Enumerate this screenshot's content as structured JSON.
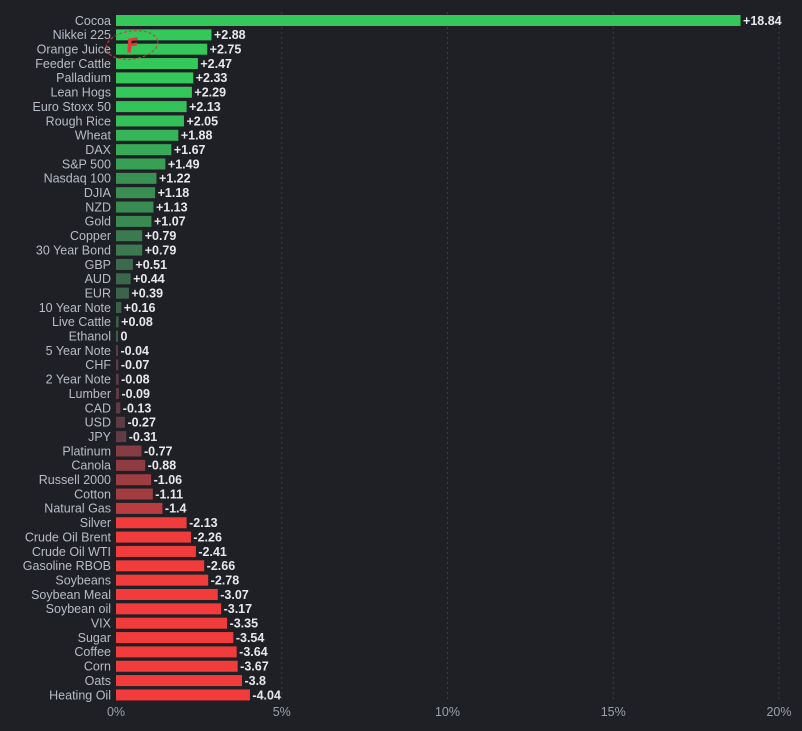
{
  "chart_data": {
    "type": "bar",
    "orientation": "horizontal",
    "title": "",
    "xlabel": "",
    "ylabel": "",
    "xlim": [
      0,
      20
    ],
    "x_ticks": [
      "0%",
      "5%",
      "10%",
      "15%",
      "20%"
    ],
    "grid": true,
    "categories": [
      "Cocoa",
      "Nikkei 225",
      "Orange Juice",
      "Feeder Cattle",
      "Palladium",
      "Lean Hogs",
      "Euro Stoxx 50",
      "Rough Rice",
      "Wheat",
      "DAX",
      "S&P 500",
      "Nasdaq 100",
      "DJIA",
      "NZD",
      "Gold",
      "Copper",
      "30 Year Bond",
      "GBP",
      "AUD",
      "EUR",
      "10 Year Note",
      "Live Cattle",
      "Ethanol",
      "5 Year Note",
      "CHF",
      "2 Year Note",
      "Lumber",
      "CAD",
      "USD",
      "JPY",
      "Platinum",
      "Canola",
      "Russell 2000",
      "Cotton",
      "Natural Gas",
      "Silver",
      "Crude Oil Brent",
      "Crude Oil WTI",
      "Gasoline RBOB",
      "Soybeans",
      "Soybean Meal",
      "Soybean oil",
      "VIX",
      "Sugar",
      "Coffee",
      "Corn",
      "Oats",
      "Heating Oil"
    ],
    "values": [
      18.84,
      2.88,
      2.75,
      2.47,
      2.33,
      2.29,
      2.13,
      2.05,
      1.88,
      1.67,
      1.49,
      1.22,
      1.18,
      1.13,
      1.07,
      0.79,
      0.79,
      0.51,
      0.44,
      0.39,
      0.16,
      0.08,
      0,
      -0.04,
      -0.07,
      -0.08,
      -0.09,
      -0.13,
      -0.27,
      -0.31,
      -0.77,
      -0.88,
      -1.06,
      -1.11,
      -1.4,
      -2.13,
      -2.26,
      -2.41,
      -2.66,
      -2.78,
      -3.07,
      -3.17,
      -3.35,
      -3.54,
      -3.64,
      -3.67,
      -3.8,
      -4.04
    ],
    "value_labels": [
      "+18.84",
      "+2.88",
      "+2.75",
      "+2.47",
      "+2.33",
      "+2.29",
      "+2.13",
      "+2.05",
      "+1.88",
      "+1.67",
      "+1.49",
      "+1.22",
      "+1.18",
      "+1.13",
      "+1.07",
      "+0.79",
      "+0.79",
      "+0.51",
      "+0.44",
      "+0.39",
      "+0.16",
      "+0.08",
      "0",
      "-0.04",
      "-0.07",
      "-0.08",
      "-0.09",
      "-0.13",
      "-0.27",
      "-0.31",
      "-0.77",
      "-0.88",
      "-1.06",
      "-1.11",
      "-1.4",
      "-2.13",
      "-2.26",
      "-2.41",
      "-2.66",
      "-2.78",
      "-3.07",
      "-3.17",
      "-3.35",
      "-3.54",
      "-3.64",
      "-3.67",
      "-3.8",
      "-4.04"
    ],
    "colors": {
      "background": "#1f2025",
      "positive_strong": "#34c75a",
      "positive_weak": "#3c5f4a",
      "negative_weak": "#5f3c45",
      "negative_strong": "#f23c3c"
    }
  },
  "logo": {
    "letter": "F",
    "color": "#e23a3a"
  }
}
